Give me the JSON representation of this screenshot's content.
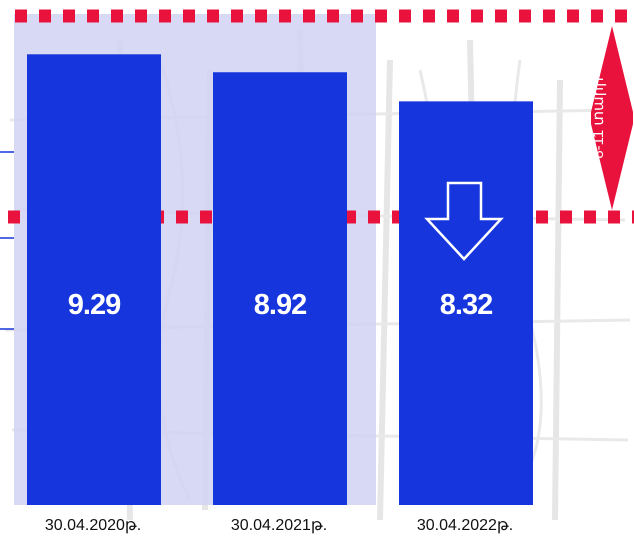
{
  "chart_data": {
    "type": "bar",
    "categories": [
      "30.04.2020թ.",
      "30.04.2021թ.",
      "30.04.2022թ."
    ],
    "values": [
      9.29,
      8.92,
      8.32
    ],
    "value_labels": [
      "9.29",
      "8.92",
      "8.32"
    ],
    "ylim": [
      0,
      10.1
    ],
    "target_range": {
      "label": "8-11 տարի",
      "min": 8,
      "max": 11
    },
    "grid": false,
    "legend": "none"
  },
  "colors": {
    "bar": "#1735dd",
    "highlight": "#d0d2f3",
    "target_line": "#e8123c",
    "axis_tick": "#1735dd",
    "texture": "#dcdcdc"
  },
  "icons": {
    "trend": "down-arrow-icon",
    "badge": "double-arrow-badge-icon"
  }
}
